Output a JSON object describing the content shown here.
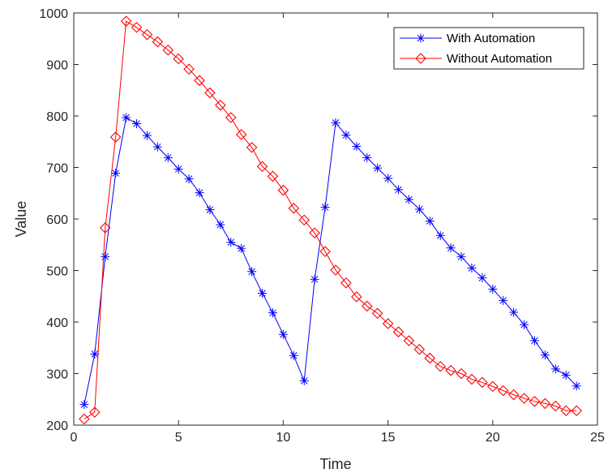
{
  "chart_data": {
    "type": "line",
    "title": "",
    "xlabel": "Time",
    "ylabel": "Value",
    "xlim": [
      0,
      25
    ],
    "ylim": [
      200,
      1000
    ],
    "xticks": [
      0,
      5,
      10,
      15,
      20,
      25
    ],
    "yticks": [
      200,
      300,
      400,
      500,
      600,
      700,
      800,
      900,
      1000
    ],
    "grid": false,
    "legend_position": "top-right",
    "series": [
      {
        "name": "With Automation",
        "color": "#0000ff",
        "marker": "asterisk",
        "x": [
          0.5,
          1,
          1.5,
          2,
          2.5,
          3,
          3.5,
          4,
          4.5,
          5,
          5.5,
          6,
          6.5,
          7,
          7.5,
          8,
          8.5,
          9,
          9.5,
          10,
          10.5,
          11,
          11.5,
          12,
          12.5,
          13,
          13.5,
          14,
          14.5,
          15,
          15.5,
          16,
          16.5,
          17,
          17.5,
          18,
          18.5,
          19,
          19.5,
          20,
          20.5,
          21,
          21.5,
          22,
          22.5,
          23,
          23.5,
          24
        ],
        "y": [
          240,
          338,
          527,
          689,
          797,
          785,
          762,
          740,
          719,
          697,
          678,
          651,
          618,
          589,
          555,
          543,
          498,
          456,
          418,
          376,
          335,
          286,
          483,
          623,
          787,
          763,
          741,
          719,
          699,
          679,
          657,
          638,
          619,
          596,
          568,
          544,
          527,
          505,
          486,
          464,
          442,
          419,
          395,
          364,
          336,
          309,
          297,
          276
        ]
      },
      {
        "name": "Without Automation",
        "color": "#ff0000",
        "marker": "diamond",
        "x": [
          0.5,
          1,
          1.5,
          2,
          2.5,
          3,
          3.5,
          4,
          4.5,
          5,
          5.5,
          6,
          6.5,
          7,
          7.5,
          8,
          8.5,
          9,
          9.5,
          10,
          10.5,
          11,
          11.5,
          12,
          12.5,
          13,
          13.5,
          14,
          14.5,
          15,
          15.5,
          16,
          16.5,
          17,
          17.5,
          18,
          18.5,
          19,
          19.5,
          20,
          20.5,
          21,
          21.5,
          22,
          22.5,
          23,
          23.5,
          24
        ],
        "y": [
          212,
          225,
          583,
          759,
          984,
          972,
          958,
          944,
          928,
          911,
          891,
          869,
          845,
          821,
          797,
          764,
          739,
          702,
          683,
          656,
          621,
          598,
          573,
          537,
          501,
          476,
          449,
          431,
          417,
          397,
          381,
          364,
          347,
          330,
          314,
          306,
          300,
          289,
          283,
          275,
          267,
          259,
          252,
          246,
          242,
          237,
          228,
          228
        ]
      }
    ]
  }
}
